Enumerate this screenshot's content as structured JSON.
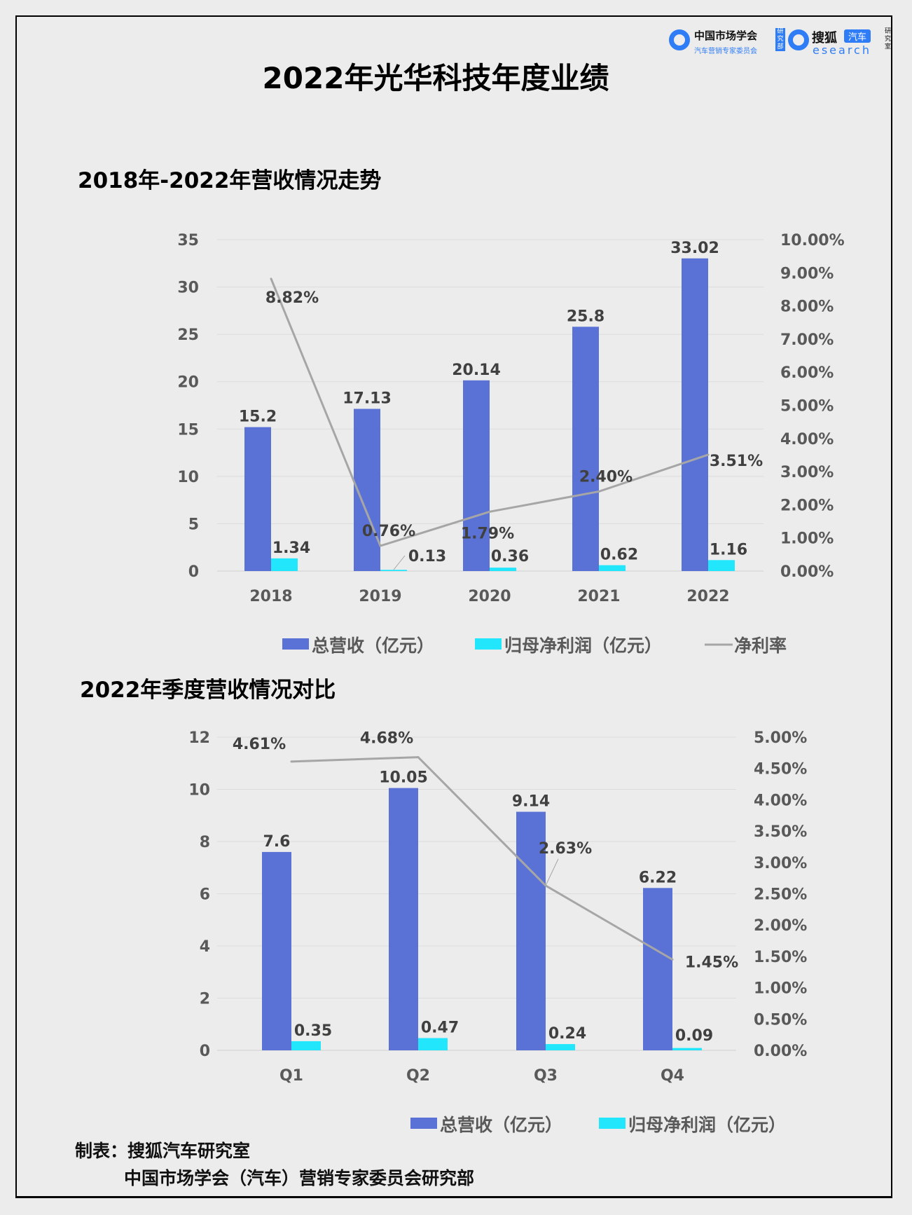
{
  "title": "2022年光华科技年度业绩",
  "logo": {
    "org1_main": "中国市场学会",
    "org1_sub": "汽车营销专家委员会",
    "org1_tag": "研究部",
    "org2_main": "搜狐",
    "org2_badge": "汽车",
    "org2_sub": "esearch",
    "org2_tag": "研究室"
  },
  "colors": {
    "revenue": "#5a72d6",
    "profit": "#22e6fb",
    "margin": "#a6a6a6",
    "background": "#ececec"
  },
  "chart_data": [
    {
      "type": "bar",
      "title": "2018年-2022年营收情况走势",
      "categories": [
        "2018",
        "2019",
        "2020",
        "2021",
        "2022"
      ],
      "series": [
        {
          "name": "总营收（亿元）",
          "type": "bar",
          "axis": "left",
          "values": [
            15.2,
            17.13,
            20.14,
            25.8,
            33.02
          ],
          "labels": [
            "15.2",
            "17.13",
            "20.14",
            "25.8",
            "33.02"
          ]
        },
        {
          "name": "归母净利润（亿元）",
          "type": "bar",
          "axis": "left",
          "values": [
            1.34,
            0.13,
            0.36,
            0.62,
            1.16
          ],
          "labels": [
            "1.34",
            "0.13",
            "0.36",
            "0.62",
            "1.16"
          ]
        },
        {
          "name": "净利率",
          "type": "line",
          "axis": "right",
          "values": [
            8.82,
            0.76,
            1.79,
            2.4,
            3.51
          ],
          "labels": [
            "8.82%",
            "0.76%",
            "1.79%",
            "2.40%",
            "3.51%"
          ]
        }
      ],
      "ylim": [
        0,
        35
      ],
      "yticks": [
        "0",
        "5",
        "10",
        "15",
        "20",
        "25",
        "30",
        "35"
      ],
      "y2lim": [
        0,
        10
      ],
      "y2ticks": [
        "0.00%",
        "1.00%",
        "2.00%",
        "3.00%",
        "4.00%",
        "5.00%",
        "6.00%",
        "7.00%",
        "8.00%",
        "9.00%",
        "10.00%"
      ],
      "grid": true,
      "legend": "bottom"
    },
    {
      "type": "bar",
      "title": "2022年季度营收情况对比",
      "categories": [
        "Q1",
        "Q2",
        "Q3",
        "Q4"
      ],
      "series": [
        {
          "name": "总营收（亿元）",
          "type": "bar",
          "axis": "left",
          "values": [
            7.6,
            10.05,
            9.14,
            6.22
          ],
          "labels": [
            "7.6",
            "10.05",
            "9.14",
            "6.22"
          ]
        },
        {
          "name": "归母净利润（亿元）",
          "type": "bar",
          "axis": "left",
          "values": [
            0.35,
            0.47,
            0.24,
            0.09
          ],
          "labels": [
            "0.35",
            "0.47",
            "0.24",
            "0.09"
          ]
        },
        {
          "type": "line",
          "axis": "right",
          "values": [
            4.61,
            4.68,
            2.63,
            1.45
          ],
          "labels": [
            "4.61%",
            "4.68%",
            "2.63%",
            "1.45%"
          ]
        }
      ],
      "ylim": [
        0,
        12
      ],
      "yticks": [
        "0",
        "2",
        "4",
        "6",
        "8",
        "10",
        "12"
      ],
      "y2lim": [
        0,
        5
      ],
      "y2ticks": [
        "0.00%",
        "0.50%",
        "1.00%",
        "1.50%",
        "2.00%",
        "2.50%",
        "3.00%",
        "3.50%",
        "4.00%",
        "4.50%",
        "5.00%"
      ],
      "grid": true,
      "legend": "bottom"
    }
  ],
  "footer": {
    "line1": "制表：搜狐汽车研究室",
    "line2": "中国市场学会（汽车）营销专家委员会研究部"
  }
}
